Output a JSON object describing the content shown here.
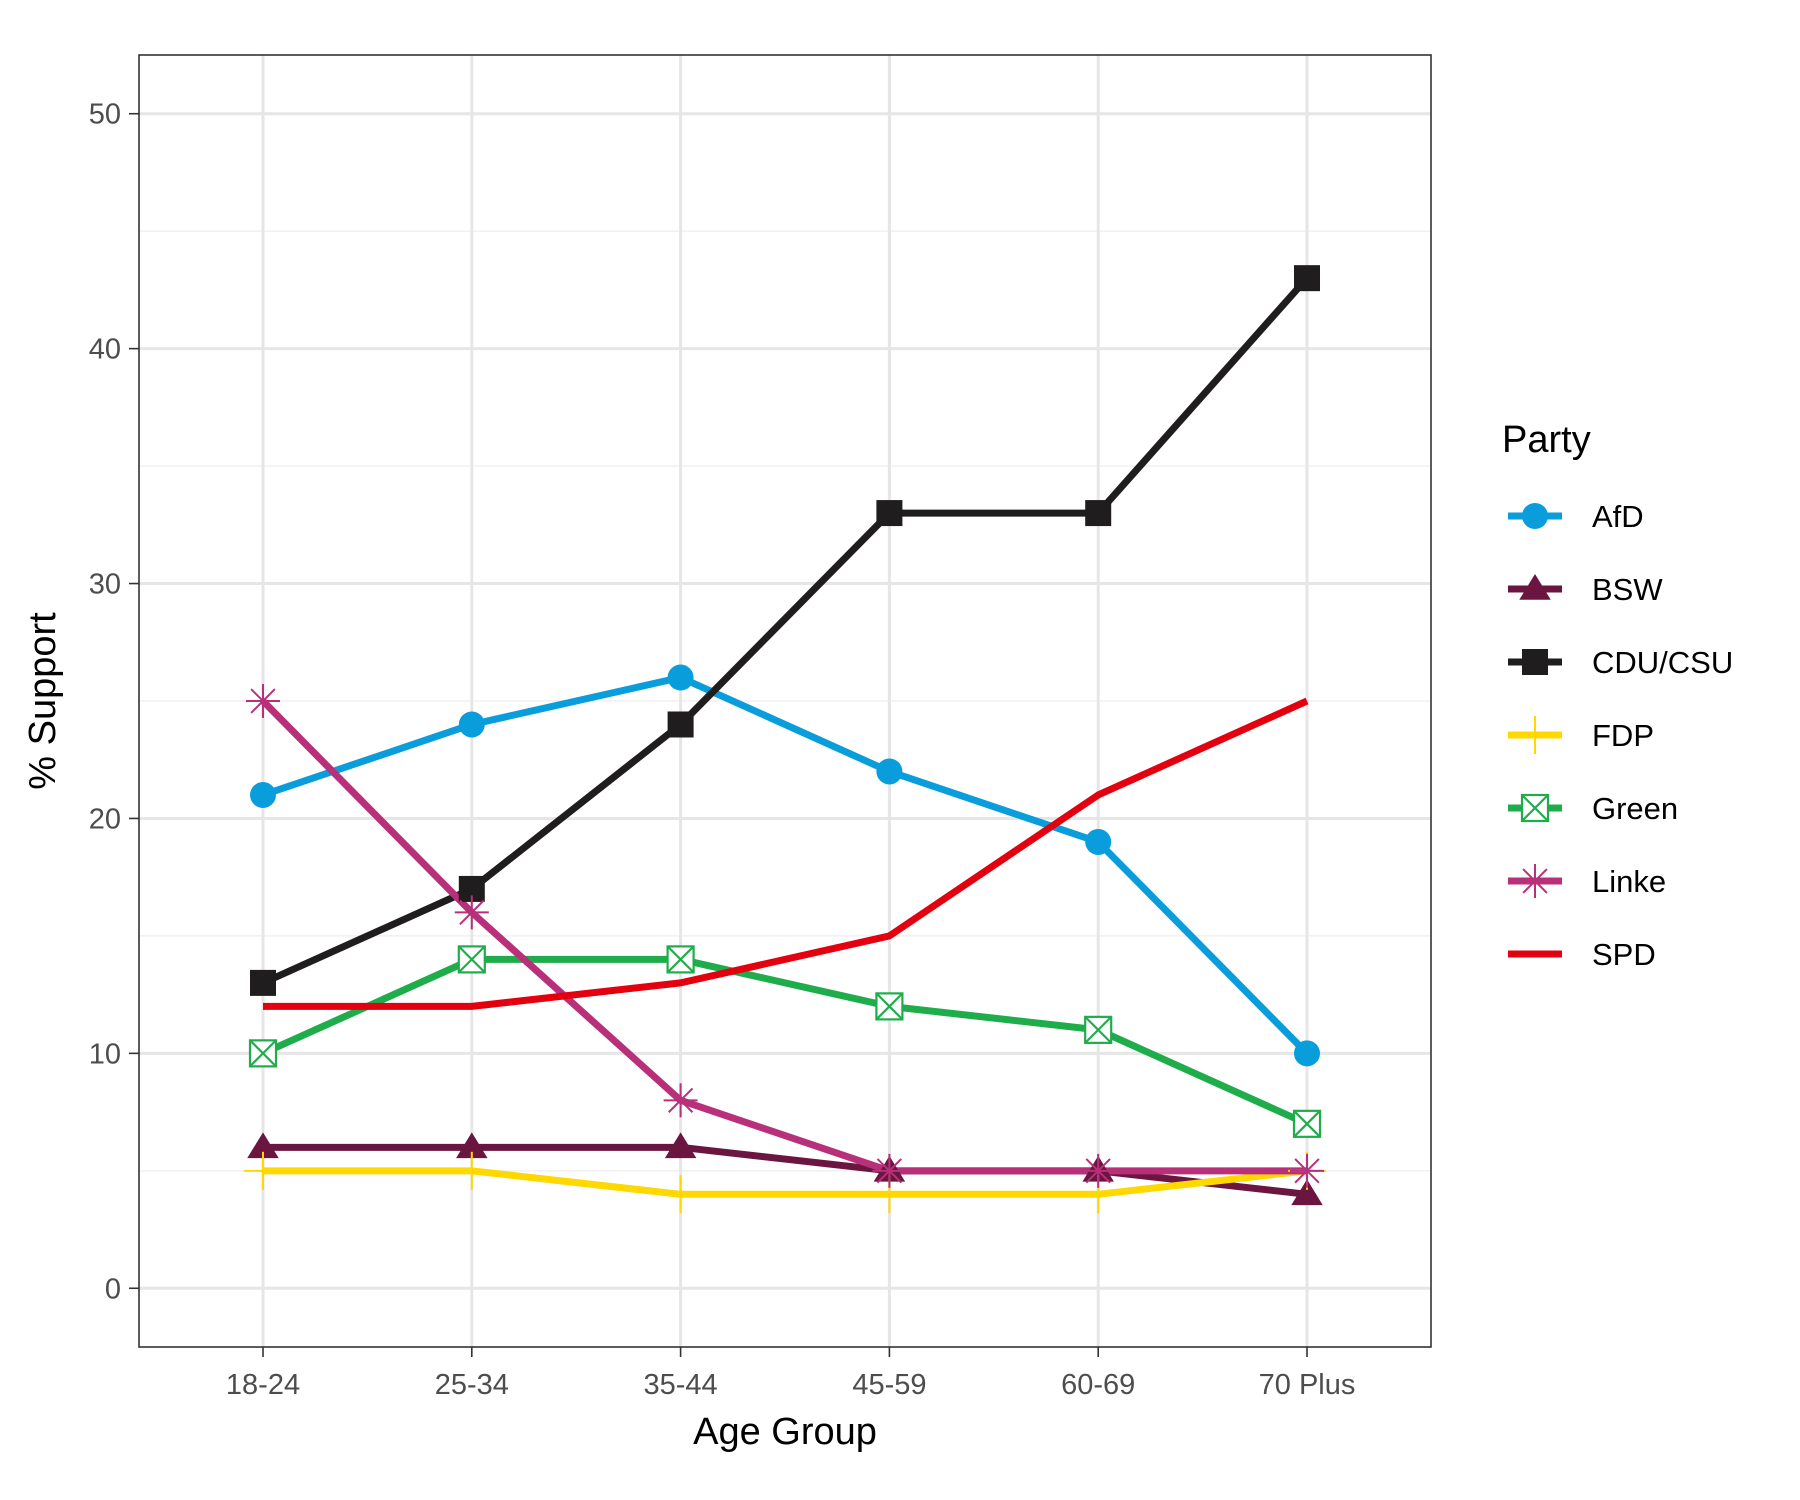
{
  "chart_data": {
    "type": "line",
    "xlabel": "Age Group",
    "ylabel": "% Support",
    "categories": [
      "18-24",
      "25-34",
      "35-44",
      "45-59",
      "60-69",
      "70 Plus"
    ],
    "ylim": [
      -2.5,
      52.5
    ],
    "yticks": [
      0,
      10,
      20,
      30,
      40,
      50
    ],
    "grid": true,
    "legend": {
      "title": "Party",
      "position": "right"
    },
    "series": [
      {
        "name": "AfD",
        "color": "#0a9ddb",
        "marker": "circle",
        "values": [
          21,
          24,
          26,
          22,
          19,
          10
        ]
      },
      {
        "name": "BSW",
        "color": "#6b1640",
        "marker": "triangle",
        "values": [
          6,
          6,
          6,
          5,
          5,
          4
        ]
      },
      {
        "name": "CDU/CSU",
        "color": "#1f1d1e",
        "marker": "square",
        "values": [
          13,
          17,
          24,
          33,
          33,
          43
        ]
      },
      {
        "name": "FDP",
        "color": "#ffd800",
        "marker": "plus",
        "values": [
          5,
          5,
          4,
          4,
          4,
          5
        ]
      },
      {
        "name": "Green",
        "color": "#1fad4b",
        "marker": "square-cross",
        "values": [
          10,
          14,
          14,
          12,
          11,
          7
        ]
      },
      {
        "name": "Linke",
        "color": "#b8307a",
        "marker": "asterisk",
        "values": [
          25,
          16,
          8,
          5,
          5,
          5
        ]
      },
      {
        "name": "SPD",
        "color": "#e3000f",
        "marker": "none",
        "values": [
          12,
          12,
          13,
          15,
          21,
          25
        ]
      }
    ]
  }
}
